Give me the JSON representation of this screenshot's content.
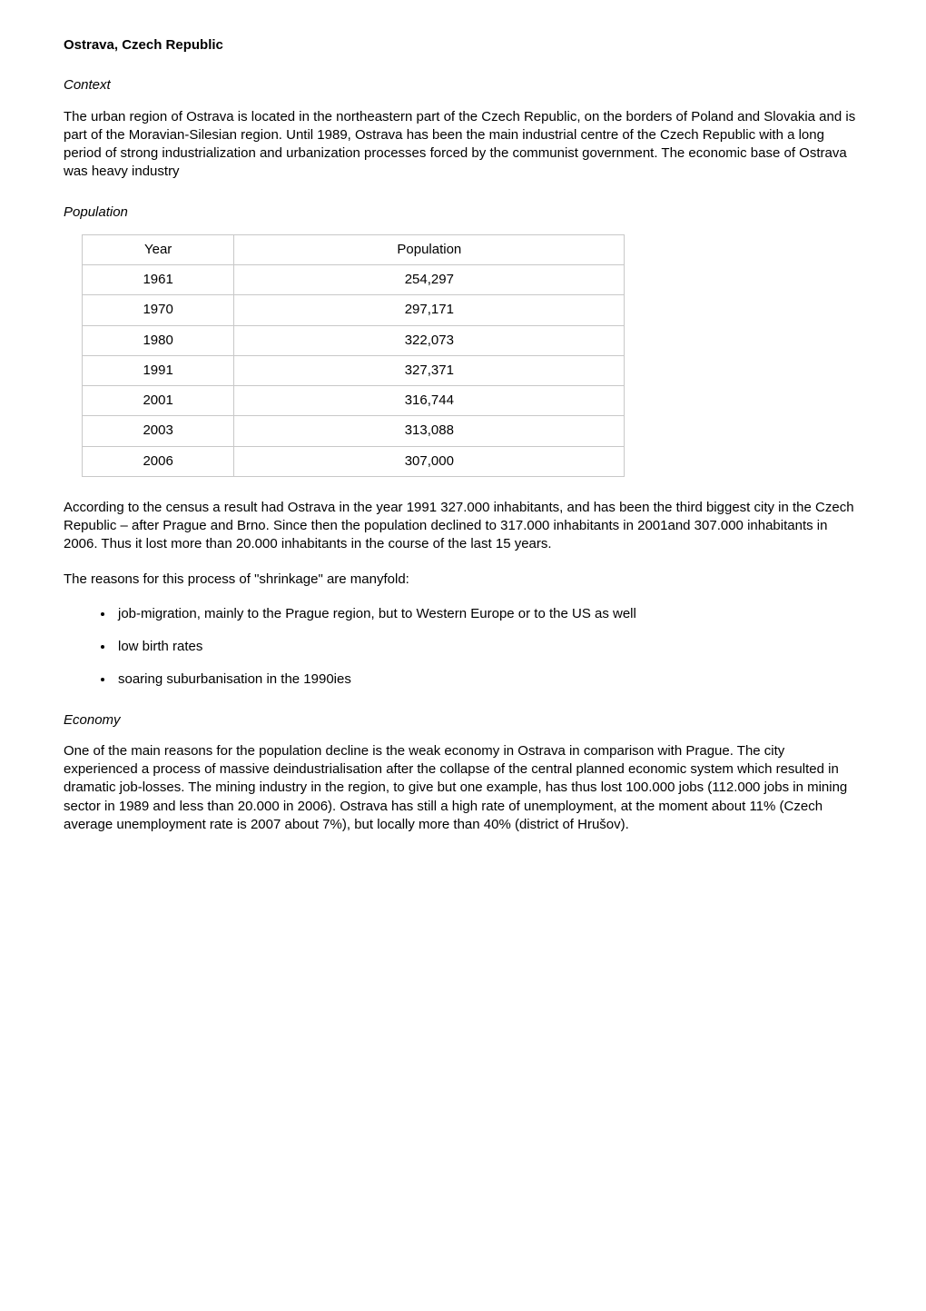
{
  "title": "Ostrava, Czech Republic",
  "sections": {
    "context": {
      "heading": "Context",
      "body": "The urban region of Ostrava is located in the northeastern part of the Czech Republic, on the borders of Poland and Slovakia and is part of the Moravian-Silesian region. Until 1989, Ostrava has been the main industrial centre of the Czech Republic with a long period of strong industrialization and urbanization processes forced by the communist government. The economic base of Ostrava was heavy industry"
    },
    "population": {
      "heading": "Population",
      "table": {
        "columns": [
          "Year",
          "Population"
        ],
        "rows": [
          [
            "1961",
            "254,297"
          ],
          [
            "1970",
            "297,171"
          ],
          [
            "1980",
            "322,073"
          ],
          [
            "1991",
            "327,371"
          ],
          [
            "2001",
            "316,744"
          ],
          [
            "2003",
            "313,088"
          ],
          [
            "2006",
            "307,000"
          ]
        ],
        "border_color": "#c8c8c8",
        "col_widths_pct": [
          28,
          72
        ],
        "align": "center"
      },
      "body_after_table": "According to the census a result had Ostrava in the year 1991 327.000 inhabitants, and has been the third biggest city in the Czech Republic – after Prague and Brno. Since then the population declined to 317.000 inhabitants in 2001and 307.000 inhabitants in 2006. Thus it lost more than 20.000 inhabitants in the course of the last 15 years.",
      "body_reasons_intro": "The reasons for this process of \"shrinkage\" are manyfold:",
      "reasons": [
        "job-migration, mainly to the Prague region, but to Western Europe or to the US as well",
        "low birth rates",
        "soaring suburbanisation in the 1990ies"
      ]
    },
    "economy": {
      "heading": "Economy",
      "body": "One of the main reasons for the population decline is the weak economy in Ostrava in comparison with Prague. The city experienced a process of massive deindustrialisation after the collapse of the central planned economic system which resulted in dramatic job-losses. The mining industry in the region, to give but one example, has thus lost 100.000 jobs (112.000 jobs in mining sector in 1989 and less than 20.000 in 2006). Ostrava has still a high rate of unemployment, at the moment about 11% (Czech average unemployment rate is 2007 about 7%), but locally more than 40% (district of Hrušov)."
    }
  }
}
